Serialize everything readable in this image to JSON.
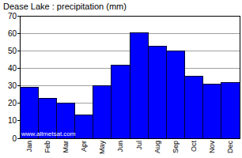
{
  "chart_data": {
    "type": "bar",
    "title": "Dease Lake : precipitation (mm)",
    "categories": [
      "Jan",
      "Feb",
      "Mar",
      "Apr",
      "May",
      "Jun",
      "Jul",
      "Aug",
      "Sep",
      "Oct",
      "Nov",
      "Dec"
    ],
    "values": [
      29,
      23,
      20,
      13.5,
      30,
      42,
      60.5,
      52.5,
      50,
      35.5,
      31,
      32
    ],
    "color": "#0000ff",
    "ylim": [
      0,
      70
    ],
    "yticks": [
      0,
      10,
      20,
      30,
      40,
      50,
      60,
      70
    ],
    "grid": true,
    "annotation": "www.allmetsat.com"
  }
}
